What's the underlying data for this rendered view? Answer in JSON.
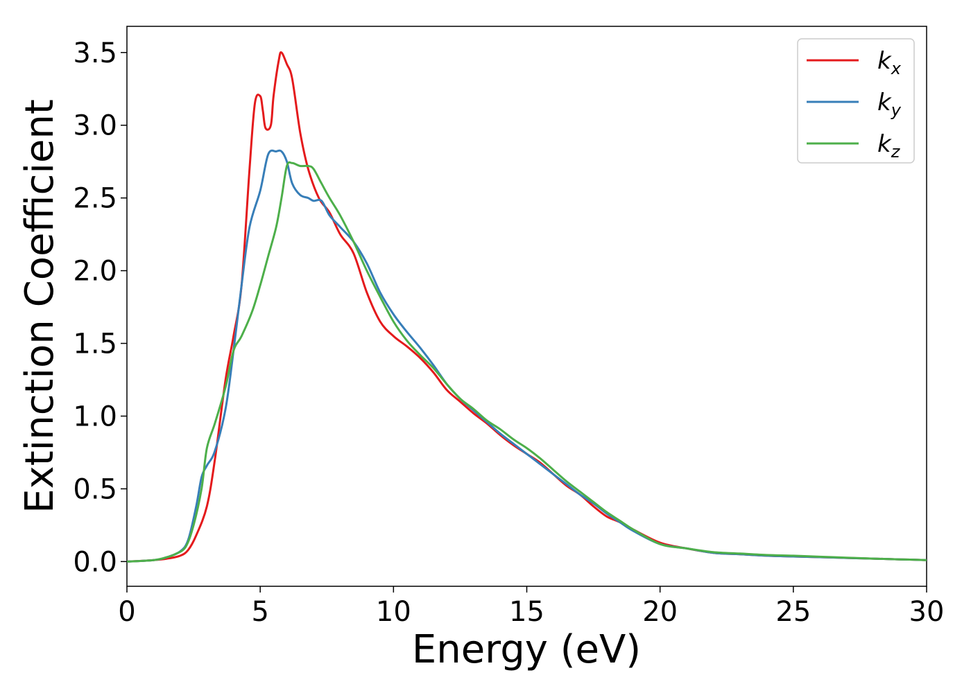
{
  "chart_data": {
    "type": "line",
    "xlabel": "Energy (eV)",
    "ylabel": "Extinction Coefficient",
    "xlim": [
      0,
      30
    ],
    "ylim": [
      -0.17,
      3.68
    ],
    "xticks": [
      "0",
      "5",
      "10",
      "15",
      "20",
      "25",
      "30"
    ],
    "yticks": [
      "0.0",
      "0.5",
      "1.0",
      "1.5",
      "2.0",
      "2.5",
      "3.0",
      "3.5"
    ],
    "grid": false,
    "legend_position": "top-right",
    "series": [
      {
        "name": "k",
        "subscript": "x",
        "color": "#e41a1c",
        "x": [
          0,
          1,
          1.5,
          2,
          2.3,
          2.6,
          3,
          3.3,
          3.7,
          4,
          4.3,
          4.6,
          4.8,
          5,
          5.1,
          5.2,
          5.4,
          5.5,
          5.7,
          5.8,
          6,
          6.2,
          6.5,
          6.8,
          7.2,
          7.6,
          8,
          8.5,
          9,
          9.5,
          10,
          10.5,
          11,
          11.5,
          12,
          12.5,
          13,
          13.5,
          14,
          14.5,
          15,
          15.5,
          16,
          16.5,
          17,
          17.5,
          18,
          18.5,
          19,
          20,
          21,
          22,
          23,
          24,
          25,
          26,
          27,
          28,
          29,
          30
        ],
        "y": [
          0,
          0.01,
          0.02,
          0.04,
          0.08,
          0.18,
          0.38,
          0.7,
          1.25,
          1.55,
          1.9,
          2.7,
          3.15,
          3.2,
          3.1,
          2.98,
          3.0,
          3.2,
          3.45,
          3.5,
          3.42,
          3.32,
          2.95,
          2.7,
          2.5,
          2.4,
          2.25,
          2.12,
          1.85,
          1.65,
          1.55,
          1.48,
          1.4,
          1.3,
          1.18,
          1.1,
          1.02,
          0.95,
          0.87,
          0.8,
          0.74,
          0.68,
          0.6,
          0.52,
          0.46,
          0.38,
          0.31,
          0.27,
          0.22,
          0.13,
          0.09,
          0.06,
          0.05,
          0.04,
          0.035,
          0.03,
          0.025,
          0.02,
          0.015,
          0.01
        ]
      },
      {
        "name": "k",
        "subscript": "y",
        "color": "#377eb8",
        "x": [
          0,
          1,
          1.5,
          2,
          2.3,
          2.6,
          2.8,
          3,
          3.3,
          3.7,
          4,
          4.3,
          4.6,
          5,
          5.3,
          5.6,
          5.8,
          6,
          6.2,
          6.5,
          6.8,
          7,
          7.3,
          7.6,
          8,
          8.5,
          9,
          9.5,
          10,
          10.5,
          11,
          11.5,
          12,
          12.5,
          13,
          13.5,
          14,
          14.5,
          15,
          15.5,
          16,
          16.5,
          17,
          17.5,
          18,
          18.5,
          19,
          20,
          21,
          22,
          23,
          24,
          25,
          26,
          27,
          28,
          29,
          30
        ],
        "y": [
          0,
          0.01,
          0.03,
          0.07,
          0.15,
          0.38,
          0.58,
          0.66,
          0.76,
          1.05,
          1.45,
          1.9,
          2.3,
          2.55,
          2.8,
          2.82,
          2.82,
          2.75,
          2.6,
          2.52,
          2.5,
          2.48,
          2.48,
          2.38,
          2.3,
          2.2,
          2.05,
          1.85,
          1.7,
          1.58,
          1.47,
          1.35,
          1.22,
          1.12,
          1.04,
          0.96,
          0.88,
          0.81,
          0.74,
          0.67,
          0.6,
          0.53,
          0.46,
          0.4,
          0.33,
          0.27,
          0.21,
          0.12,
          0.09,
          0.06,
          0.05,
          0.04,
          0.035,
          0.03,
          0.025,
          0.02,
          0.015,
          0.01
        ]
      },
      {
        "name": "k",
        "subscript": "z",
        "color": "#4daf4a",
        "x": [
          0,
          1,
          1.5,
          1.8,
          2.2,
          2.5,
          2.8,
          3,
          3.3,
          3.7,
          4,
          4.3,
          4.7,
          5,
          5.3,
          5.6,
          5.8,
          6,
          6.2,
          6.5,
          6.8,
          7,
          7.3,
          7.6,
          8,
          8.5,
          9,
          9.5,
          10,
          10.5,
          11,
          11.5,
          12,
          12.5,
          13,
          13.5,
          14,
          14.5,
          15,
          15.5,
          16,
          16.5,
          17,
          17.5,
          18,
          18.5,
          19,
          20,
          21,
          22,
          23,
          24,
          25,
          26,
          27,
          28,
          29,
          30
        ],
        "y": [
          0,
          0.01,
          0.03,
          0.05,
          0.1,
          0.25,
          0.5,
          0.78,
          0.95,
          1.2,
          1.45,
          1.55,
          1.72,
          1.9,
          2.1,
          2.3,
          2.5,
          2.72,
          2.74,
          2.72,
          2.72,
          2.7,
          2.6,
          2.5,
          2.38,
          2.2,
          2.0,
          1.82,
          1.65,
          1.52,
          1.42,
          1.33,
          1.22,
          1.12,
          1.05,
          0.97,
          0.91,
          0.84,
          0.78,
          0.71,
          0.63,
          0.55,
          0.48,
          0.41,
          0.34,
          0.28,
          0.22,
          0.12,
          0.09,
          0.065,
          0.055,
          0.045,
          0.04,
          0.033,
          0.027,
          0.02,
          0.015,
          0.01
        ]
      }
    ]
  }
}
